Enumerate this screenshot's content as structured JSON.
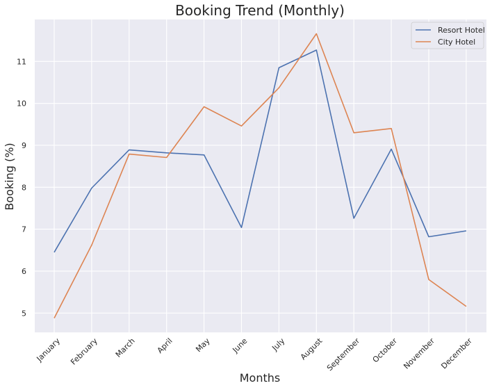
{
  "chart_data": {
    "type": "line",
    "title": "Booking Trend (Monthly)",
    "xlabel": "Months",
    "ylabel": "Booking (%)",
    "categories": [
      "January",
      "February",
      "March",
      "April",
      "May",
      "June",
      "July",
      "August",
      "September",
      "October",
      "November",
      "December"
    ],
    "series": [
      {
        "name": "Resort Hotel",
        "color": "#4c72b0",
        "values": [
          6.45,
          7.98,
          8.89,
          8.82,
          8.77,
          7.04,
          10.85,
          11.27,
          7.26,
          8.91,
          6.82,
          6.96
        ]
      },
      {
        "name": "City Hotel",
        "color": "#dd8452",
        "values": [
          4.88,
          6.62,
          8.79,
          8.71,
          9.92,
          9.46,
          10.37,
          11.66,
          9.3,
          9.4,
          5.8,
          5.16
        ]
      }
    ],
    "yticks": [
      5,
      6,
      7,
      8,
      9,
      10,
      11
    ],
    "ylim": [
      4.54,
      12.0
    ],
    "grid": true,
    "legend_position": "top-right",
    "background": "#eaeaf2"
  }
}
